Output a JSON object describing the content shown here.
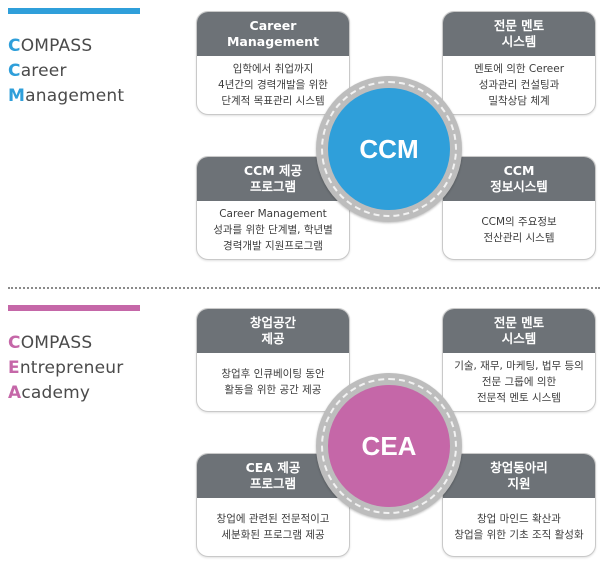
{
  "colors": {
    "ccm_accent": "#2f9fda",
    "cea_accent": "#c567a8",
    "card_header": "#6d7277"
  },
  "sections": [
    {
      "title_lines": [
        {
          "initial": "C",
          "rest": "OMPASS"
        },
        {
          "initial": "C",
          "rest": "areer"
        },
        {
          "initial": "M",
          "rest": "anagement"
        }
      ],
      "center_label": "CCM",
      "cards": [
        {
          "heading": "Career\nManagement",
          "body": "입학에서 취업까지\n4년간의 경력개발을 위한\n단계적 목표관리 시스템"
        },
        {
          "heading": "전문 멘토\n시스템",
          "body": "멘토에 의한 Cereer\n성과관리 컨설팅과\n밀착상담 체계"
        },
        {
          "heading": "CCM 제공\n프로그램",
          "body": "Career Management\n성과를 위한 단계별, 학년별\n경력개발 지원프로그램"
        },
        {
          "heading": "CCM\n정보시스템",
          "body": "CCM의 주요정보\n전산관리 시스템"
        }
      ]
    },
    {
      "title_lines": [
        {
          "initial": "C",
          "rest": "OMPASS"
        },
        {
          "initial": "E",
          "rest": "ntrepreneur"
        },
        {
          "initial": "A",
          "rest": "cademy"
        }
      ],
      "center_label": "CEA",
      "cards": [
        {
          "heading": "창업공간\n제공",
          "body": "창업후 인큐베이팅 동안\n활동을 위한 공간 제공"
        },
        {
          "heading": "전문 멘토\n시스템",
          "body": "기술, 재무, 마케팅, 법무 등의\n전문 그룹에 의한\n전문적 멘토 시스템"
        },
        {
          "heading": "CEA 제공\n프로그램",
          "body": "창업에 관련된 전문적이고\n세분화된 프로그램 제공"
        },
        {
          "heading": "창업동아리\n지원",
          "body": "창업 마인드 확산과\n창업을 위한 기초 조직 활성화"
        }
      ]
    }
  ]
}
